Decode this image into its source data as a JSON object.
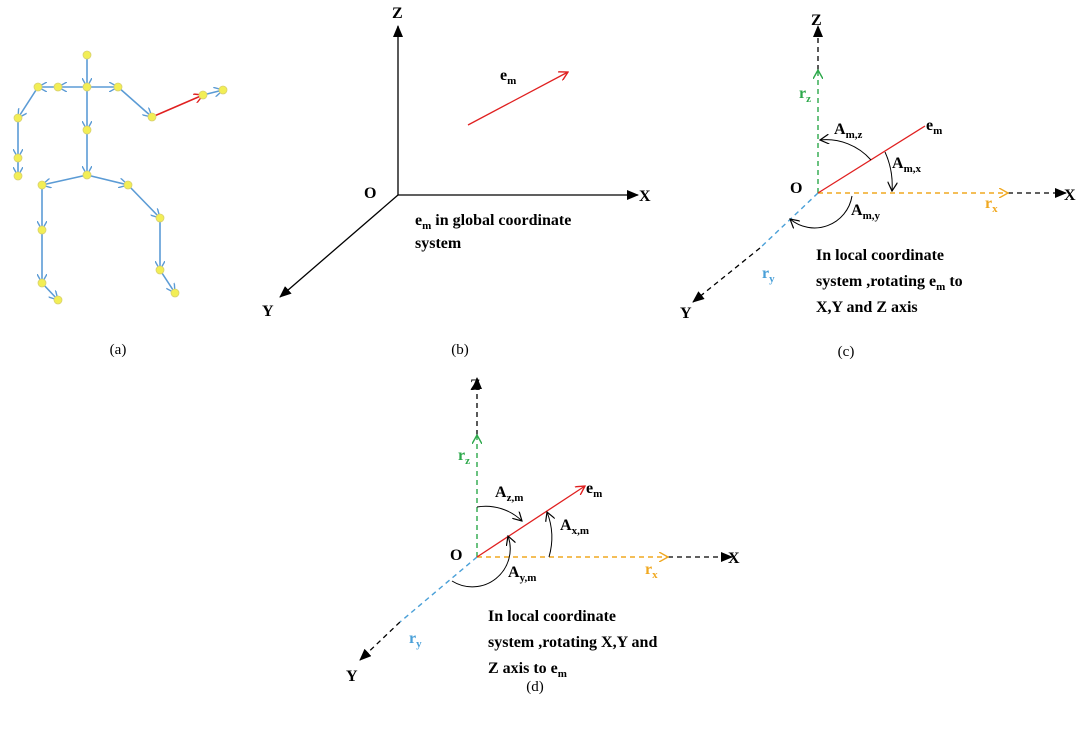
{
  "a": {
    "caption": "(a)"
  },
  "b": {
    "caption": "(b)",
    "z": "Z",
    "x": "X",
    "y": "Y",
    "o": "O",
    "em": [
      "e",
      "m"
    ],
    "note": [
      "e",
      "m",
      " in global coordinate",
      "system"
    ]
  },
  "c": {
    "caption": "(c)",
    "z": "Z",
    "x": "X",
    "y": "Y",
    "o": "O",
    "em": [
      "e",
      "m"
    ],
    "rz": [
      "r",
      "z"
    ],
    "rx": [
      "r",
      "x"
    ],
    "ry": [
      "r",
      "y"
    ],
    "amz": [
      "A",
      "m,z"
    ],
    "amx": [
      "A",
      "m,x"
    ],
    "amy": [
      "A",
      "m,y"
    ],
    "note": [
      "In local coordinate",
      "system ,rotating ",
      "e",
      "m",
      " to",
      "X,Y and Z axis"
    ]
  },
  "d": {
    "caption": "(d)",
    "z": "Z",
    "x": "X",
    "y": "Y",
    "o": "O",
    "em": [
      "e",
      "m"
    ],
    "rz": [
      "r",
      "z"
    ],
    "rx": [
      "r",
      "x"
    ],
    "ry": [
      "r",
      "y"
    ],
    "azm": [
      "A",
      "z,m"
    ],
    "axm": [
      "A",
      "x,m"
    ],
    "aym": [
      "A",
      "y,m"
    ],
    "note": [
      "In local coordinate",
      "system ,rotating X,Y and",
      "Z axis to ",
      "e",
      "m"
    ]
  }
}
